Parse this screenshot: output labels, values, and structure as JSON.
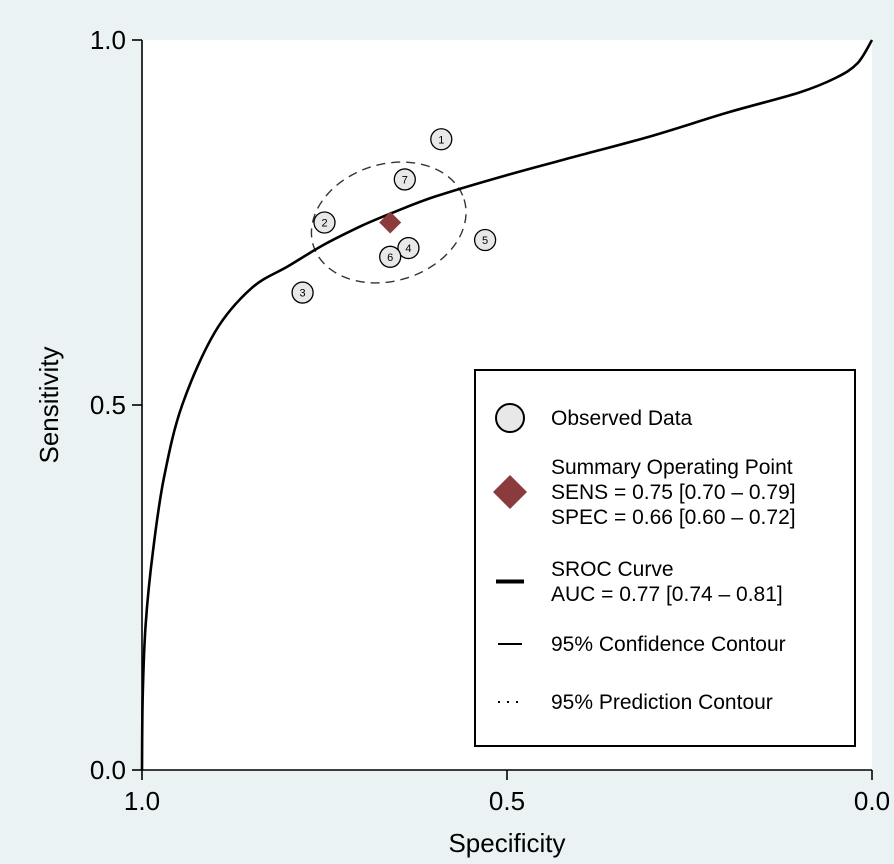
{
  "chart_data": {
    "type": "scatter",
    "title": "",
    "xlabel": "Specificity",
    "ylabel": "Sensitivity",
    "xlim": [
      1.0,
      0.0
    ],
    "ylim": [
      0.0,
      1.0
    ],
    "x_reversed": true,
    "grid": false,
    "x_ticks": [
      {
        "value": 1.0,
        "label": "1.0"
      },
      {
        "value": 0.5,
        "label": "0.5"
      },
      {
        "value": 0.0,
        "label": "0.0"
      }
    ],
    "y_ticks": [
      {
        "value": 0.0,
        "label": "0.0"
      },
      {
        "value": 0.5,
        "label": "0.5"
      },
      {
        "value": 1.0,
        "label": "1.0"
      }
    ],
    "observed": [
      {
        "label": "1",
        "specificity": 0.59,
        "sensitivity": 0.864
      },
      {
        "label": "2",
        "specificity": 0.75,
        "sensitivity": 0.75
      },
      {
        "label": "3",
        "specificity": 0.78,
        "sensitivity": 0.654
      },
      {
        "label": "4",
        "specificity": 0.635,
        "sensitivity": 0.715
      },
      {
        "label": "5",
        "specificity": 0.53,
        "sensitivity": 0.726
      },
      {
        "label": "6",
        "specificity": 0.66,
        "sensitivity": 0.703
      },
      {
        "label": "7",
        "specificity": 0.64,
        "sensitivity": 0.809
      }
    ],
    "summary_point": {
      "specificity": 0.66,
      "sensitivity": 0.75,
      "color": "#8b3a3e"
    },
    "sroc_curve": [
      {
        "specificity": 1.0,
        "sensitivity": 0.0
      },
      {
        "specificity": 0.999,
        "sensitivity": 0.1
      },
      {
        "specificity": 0.995,
        "sensitivity": 0.2
      },
      {
        "specificity": 0.985,
        "sensitivity": 0.3
      },
      {
        "specificity": 0.97,
        "sensitivity": 0.4
      },
      {
        "specificity": 0.945,
        "sensitivity": 0.5
      },
      {
        "specificity": 0.9,
        "sensitivity": 0.6
      },
      {
        "specificity": 0.85,
        "sensitivity": 0.66
      },
      {
        "specificity": 0.8,
        "sensitivity": 0.69
      },
      {
        "specificity": 0.75,
        "sensitivity": 0.72
      },
      {
        "specificity": 0.7,
        "sensitivity": 0.745
      },
      {
        "specificity": 0.66,
        "sensitivity": 0.762
      },
      {
        "specificity": 0.6,
        "sensitivity": 0.785
      },
      {
        "specificity": 0.5,
        "sensitivity": 0.815
      },
      {
        "specificity": 0.4,
        "sensitivity": 0.842
      },
      {
        "specificity": 0.3,
        "sensitivity": 0.869
      },
      {
        "specificity": 0.2,
        "sensitivity": 0.9
      },
      {
        "specificity": 0.1,
        "sensitivity": 0.928
      },
      {
        "specificity": 0.05,
        "sensitivity": 0.948
      },
      {
        "specificity": 0.02,
        "sensitivity": 0.968
      },
      {
        "specificity": 0.0,
        "sensitivity": 1.0
      }
    ],
    "confidence_contour": {
      "center_specificity": 0.662,
      "center_sensitivity": 0.75,
      "semi_axis_specificity": 0.108,
      "semi_axis_sensitivity": 0.08,
      "rotation_deg": -17
    },
    "legend": {
      "placement": "bottom-right",
      "items": [
        {
          "key": "observed",
          "lines": [
            "Observed Data"
          ]
        },
        {
          "key": "summary",
          "lines": [
            "Summary Operating Point",
            "SENS = 0.75 [0.70 – 0.79]",
            "SPEC = 0.66 [0.60 – 0.72]"
          ]
        },
        {
          "key": "sroc",
          "lines": [
            "SROC Curve",
            "AUC = 0.77 [0.74 – 0.81]"
          ]
        },
        {
          "key": "confidence",
          "lines": [
            "95% Confidence Contour"
          ]
        },
        {
          "key": "prediction",
          "lines": [
            "95% Prediction Contour"
          ]
        }
      ]
    }
  }
}
